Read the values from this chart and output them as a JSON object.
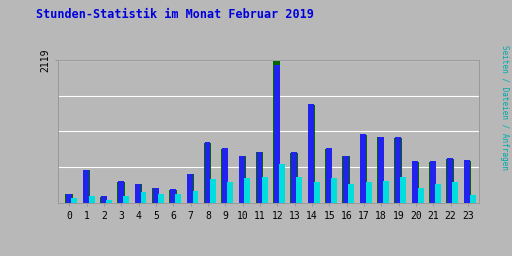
{
  "title": "Stunden-Statistik im Monat Februar 2019",
  "title_color": "#0000dd",
  "background_color": "#b8b8b8",
  "plot_bg_color": "#b8b8b8",
  "hours": [
    0,
    1,
    2,
    3,
    4,
    5,
    6,
    7,
    8,
    9,
    10,
    11,
    12,
    13,
    14,
    15,
    16,
    17,
    18,
    19,
    20,
    21,
    22,
    23
  ],
  "seiten": [
    130,
    490,
    100,
    320,
    280,
    220,
    200,
    430,
    900,
    820,
    700,
    760,
    2050,
    760,
    1470,
    820,
    700,
    1020,
    980,
    980,
    620,
    620,
    660,
    640
  ],
  "dateien": [
    125,
    485,
    92,
    310,
    275,
    215,
    195,
    425,
    885,
    800,
    690,
    750,
    2100,
    740,
    1450,
    800,
    690,
    1010,
    970,
    965,
    612,
    612,
    652,
    622
  ],
  "anfragen": [
    65,
    105,
    38,
    100,
    160,
    135,
    125,
    175,
    360,
    310,
    370,
    380,
    570,
    380,
    310,
    370,
    280,
    315,
    325,
    385,
    215,
    275,
    305,
    115
  ],
  "ymax": 2119,
  "ylabel": "Seiten / Dateien / Anfragen",
  "bar_color_seiten": "#2222ee",
  "bar_color_dateien": "#006600",
  "bar_color_anfragen": "#00dddd",
  "font_name": "monospace"
}
